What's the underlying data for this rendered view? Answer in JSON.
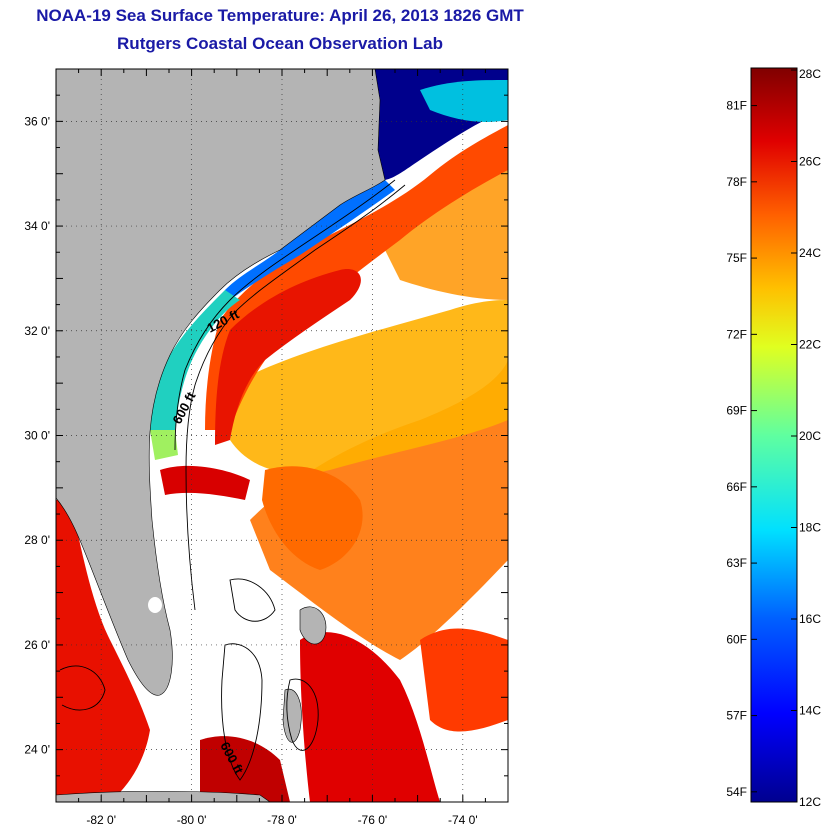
{
  "title_line1": "NOAA-19 Sea Surface Temperature:  April 26, 2013 1826 GMT",
  "title_line2": "Rutgers Coastal Ocean Observation Lab",
  "map": {
    "lon_range": [
      -83,
      -73
    ],
    "lat_range": [
      23,
      37
    ],
    "lon_ticks": [
      {
        "value": -82,
        "label": "-82 0'"
      },
      {
        "value": -80,
        "label": "-80 0'"
      },
      {
        "value": -78,
        "label": "-78 0'"
      },
      {
        "value": -76,
        "label": "-76 0'"
      },
      {
        "value": -74,
        "label": "-74 0'"
      }
    ],
    "lat_ticks": [
      {
        "value": 24,
        "label": "24 0'"
      },
      {
        "value": 26,
        "label": "26 0'"
      },
      {
        "value": 28,
        "label": "28 0'"
      },
      {
        "value": 30,
        "label": "30 0'"
      },
      {
        "value": 32,
        "label": "32 0'"
      },
      {
        "value": 34,
        "label": "34 0'"
      },
      {
        "value": 36,
        "label": "36 0'"
      }
    ],
    "contour_labels": [
      "120 ft",
      "600 ft",
      "600 ft"
    ],
    "colors": {
      "land": "#b4b4b4",
      "cloud": "#ffffff",
      "frame": "#000000"
    }
  },
  "colorbar": {
    "min_c": 12,
    "max_c": 28,
    "celsius": [
      {
        "value": 28,
        "label": "28C"
      },
      {
        "value": 26,
        "label": "26C"
      },
      {
        "value": 24,
        "label": "24C"
      },
      {
        "value": 22,
        "label": "22C"
      },
      {
        "value": 20,
        "label": "20C"
      },
      {
        "value": 18,
        "label": "18C"
      },
      {
        "value": 16,
        "label": "16C"
      },
      {
        "value": 14,
        "label": "14C"
      },
      {
        "value": 12,
        "label": "12C"
      }
    ],
    "fahrenheit": [
      {
        "value": 81,
        "label": "81F"
      },
      {
        "value": 78,
        "label": "78F"
      },
      {
        "value": 75,
        "label": "75F"
      },
      {
        "value": 72,
        "label": "72F"
      },
      {
        "value": 69,
        "label": "69F"
      },
      {
        "value": 66,
        "label": "66F"
      },
      {
        "value": 63,
        "label": "63F"
      },
      {
        "value": 60,
        "label": "60F"
      },
      {
        "value": 57,
        "label": "57F"
      },
      {
        "value": 54,
        "label": "54F"
      }
    ]
  }
}
